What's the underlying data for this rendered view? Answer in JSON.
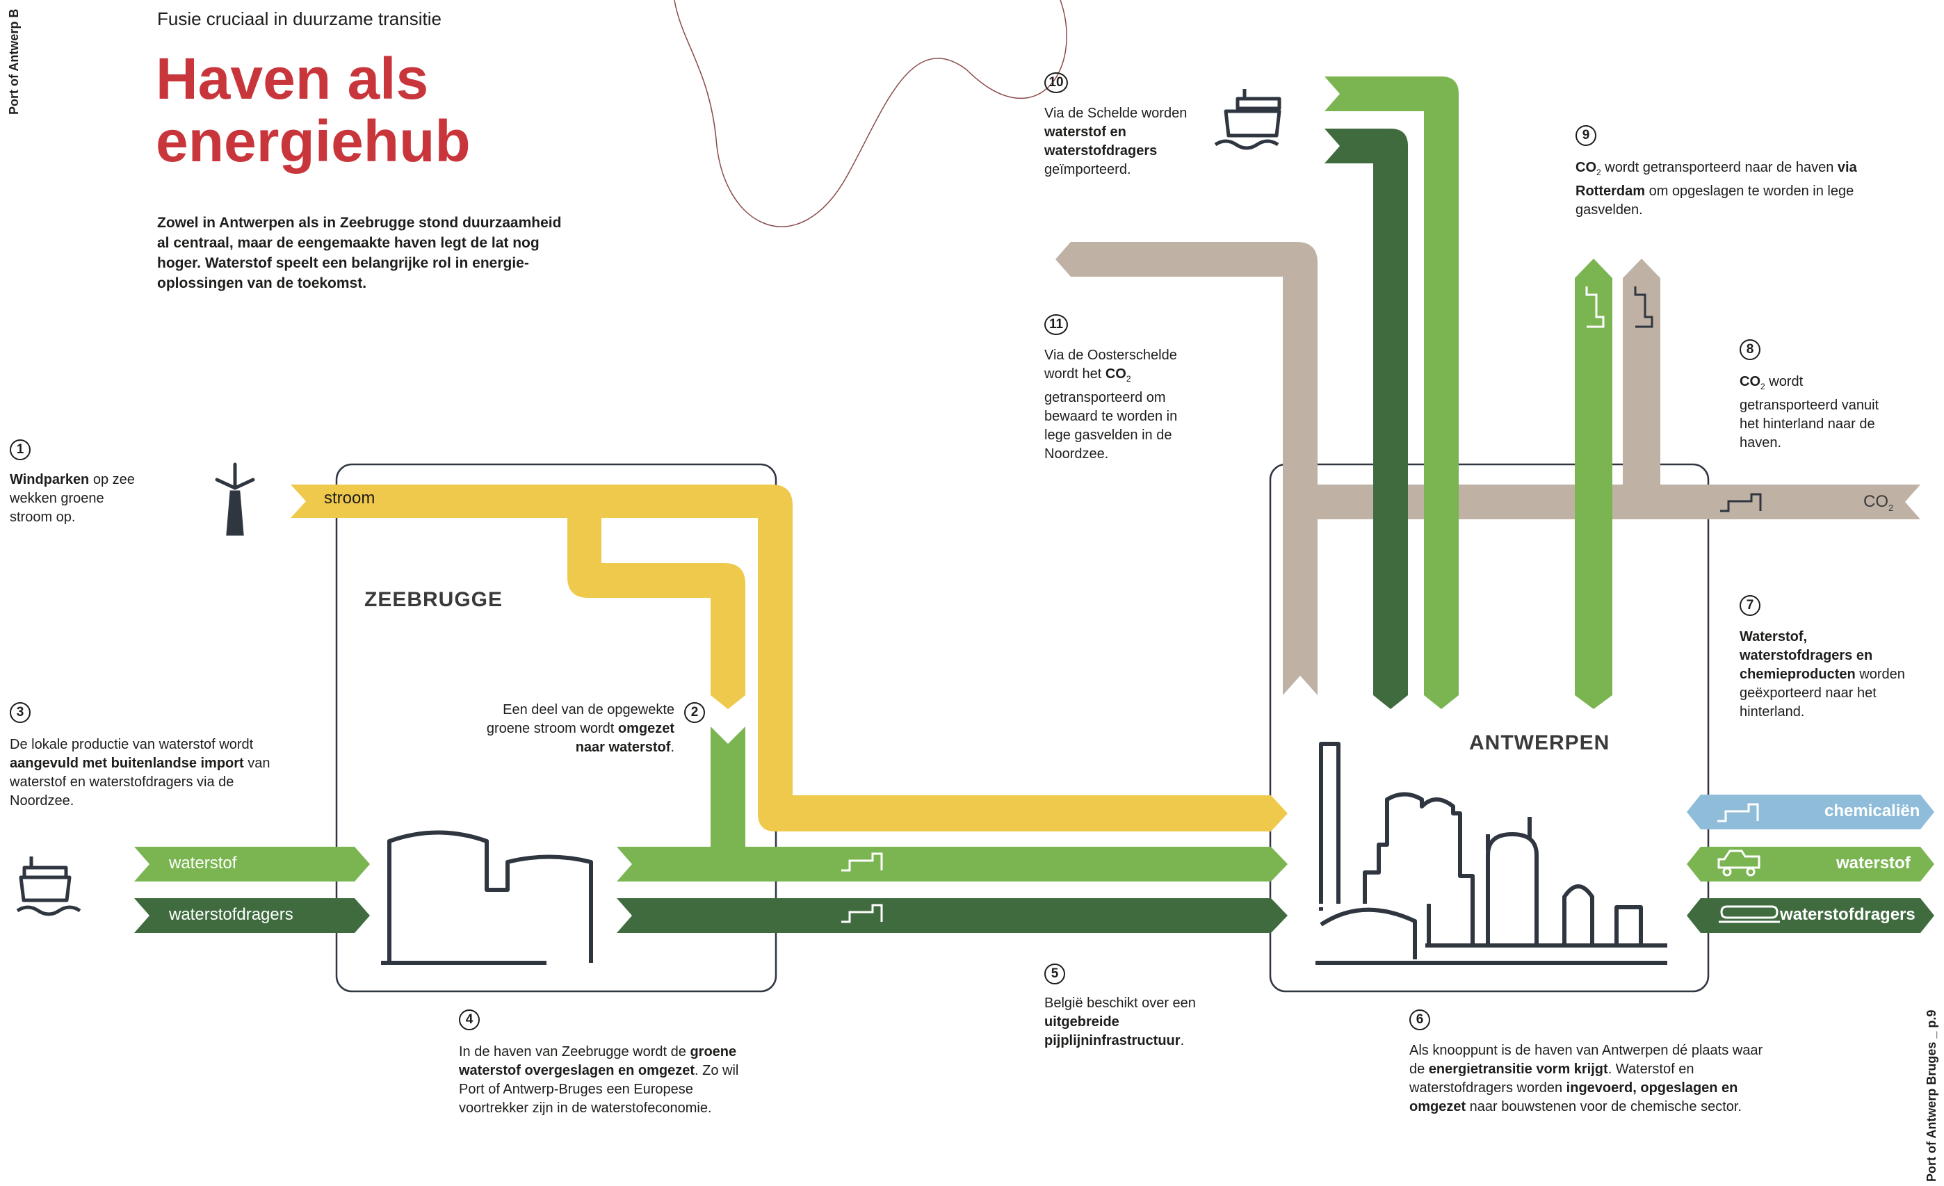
{
  "side": {
    "left": "Port of Antwerp B",
    "right": "Port of Antwerp Bruges _ p.9"
  },
  "header": {
    "subtitle": "Fusie cruciaal in duurzame transitie",
    "title": "Haven als energiehub",
    "intro": "Zowel in Antwerpen als in Zeebrugge stond duurzaamheid al centraal, maar de eengemaakte haven legt de lat nog hoger. Waterstof speelt een belangrijke rol in energie-oplossingen van de toekomst."
  },
  "locations": {
    "zeebrugge": "ZEEBRUGGE",
    "antwerpen": "ANTWERPEN"
  },
  "flows": {
    "stroom": "stroom",
    "waterstof_in": "waterstof",
    "waterstofdragers_in": "waterstofdragers",
    "co2_label": "CO",
    "co2_sub": "2",
    "chemicalien_out": "chemicaliën",
    "waterstof_out": "waterstof",
    "waterstofdragers_out": "waterstofdragers"
  },
  "colors": {
    "yellow": "#efc94c",
    "light_green": "#7ab552",
    "dark_green": "#3f6b3f",
    "taupe": "#bfb2a5",
    "light_blue": "#8fbcd9",
    "dark_icon": "#2f3640",
    "title_red": "#c8363b"
  },
  "icons": [
    "wind-turbine-icon",
    "ship-icon",
    "pipeline-icon",
    "storage-tank-icon",
    "industry-icon",
    "truck-icon",
    "rail-tanker-icon"
  ],
  "notes": [
    {
      "n": "1",
      "parts": [
        [
          "b",
          "Windparken"
        ],
        [
          "t",
          " op zee wekken groene stroom op."
        ]
      ]
    },
    {
      "n": "2",
      "parts": [
        [
          "t",
          "Een deel van de opgewekte groene stroom wordt "
        ],
        [
          "b",
          "omgezet naar waterstof"
        ],
        [
          "t",
          "."
        ]
      ]
    },
    {
      "n": "3",
      "parts": [
        [
          "t",
          "De lokale productie van waterstof wordt "
        ],
        [
          "b",
          "aangevuld met buitenlandse import"
        ],
        [
          "t",
          " van waterstof en waterstofdragers via de Noordzee."
        ]
      ]
    },
    {
      "n": "4",
      "parts": [
        [
          "t",
          "In de haven van Zeebrugge wordt de "
        ],
        [
          "b",
          "groene waterstof overgeslagen en omgezet"
        ],
        [
          "t",
          ". Zo wil Port of Antwerp-Bruges een Europese voortrekker zijn in de waterstofeconomie."
        ]
      ]
    },
    {
      "n": "5",
      "parts": [
        [
          "t",
          "België beschikt over een "
        ],
        [
          "b",
          "uitgebreide pijplijninfrastructuur"
        ],
        [
          "t",
          "."
        ]
      ]
    },
    {
      "n": "6",
      "parts": [
        [
          "t",
          "Als knooppunt is de haven van Antwerpen dé plaats waar de "
        ],
        [
          "b",
          "energietransitie vorm krijgt"
        ],
        [
          "t",
          ". Waterstof en waterstofdragers worden "
        ],
        [
          "b",
          "ingevoerd, opgeslagen en omgezet"
        ],
        [
          "t",
          " naar bouwstenen voor de chemische sector."
        ]
      ]
    },
    {
      "n": "7",
      "parts": [
        [
          "b",
          "Waterstof, waterstofdragers en chemieproducten"
        ],
        [
          "t",
          " worden geëxporteerd naar het hinterland."
        ]
      ]
    },
    {
      "n": "8",
      "parts": [
        [
          "b",
          "CO"
        ],
        [
          "sub",
          "2"
        ],
        [
          "t",
          " wordt getransporteerd vanuit het hinterland naar de haven."
        ]
      ]
    },
    {
      "n": "9",
      "parts": [
        [
          "b",
          "CO"
        ],
        [
          "sub",
          "2"
        ],
        [
          "t",
          " wordt getransporteerd naar de haven "
        ],
        [
          "b",
          "via Rotterdam"
        ],
        [
          "t",
          " om opgeslagen te worden in lege gasvelden."
        ]
      ]
    },
    {
      "n": "10",
      "parts": [
        [
          "t",
          "Via de Schelde worden "
        ],
        [
          "b",
          "waterstof en waterstofdragers"
        ],
        [
          "t",
          " geïmporteerd."
        ]
      ]
    },
    {
      "n": "11",
      "parts": [
        [
          "t",
          "Via de Oosterschelde wordt het "
        ],
        [
          "b",
          "CO"
        ],
        [
          "sub",
          "2"
        ],
        [
          "t",
          " getransporteerd om bewaard te worden in lege gasvelden in de Noordzee."
        ]
      ]
    }
  ]
}
